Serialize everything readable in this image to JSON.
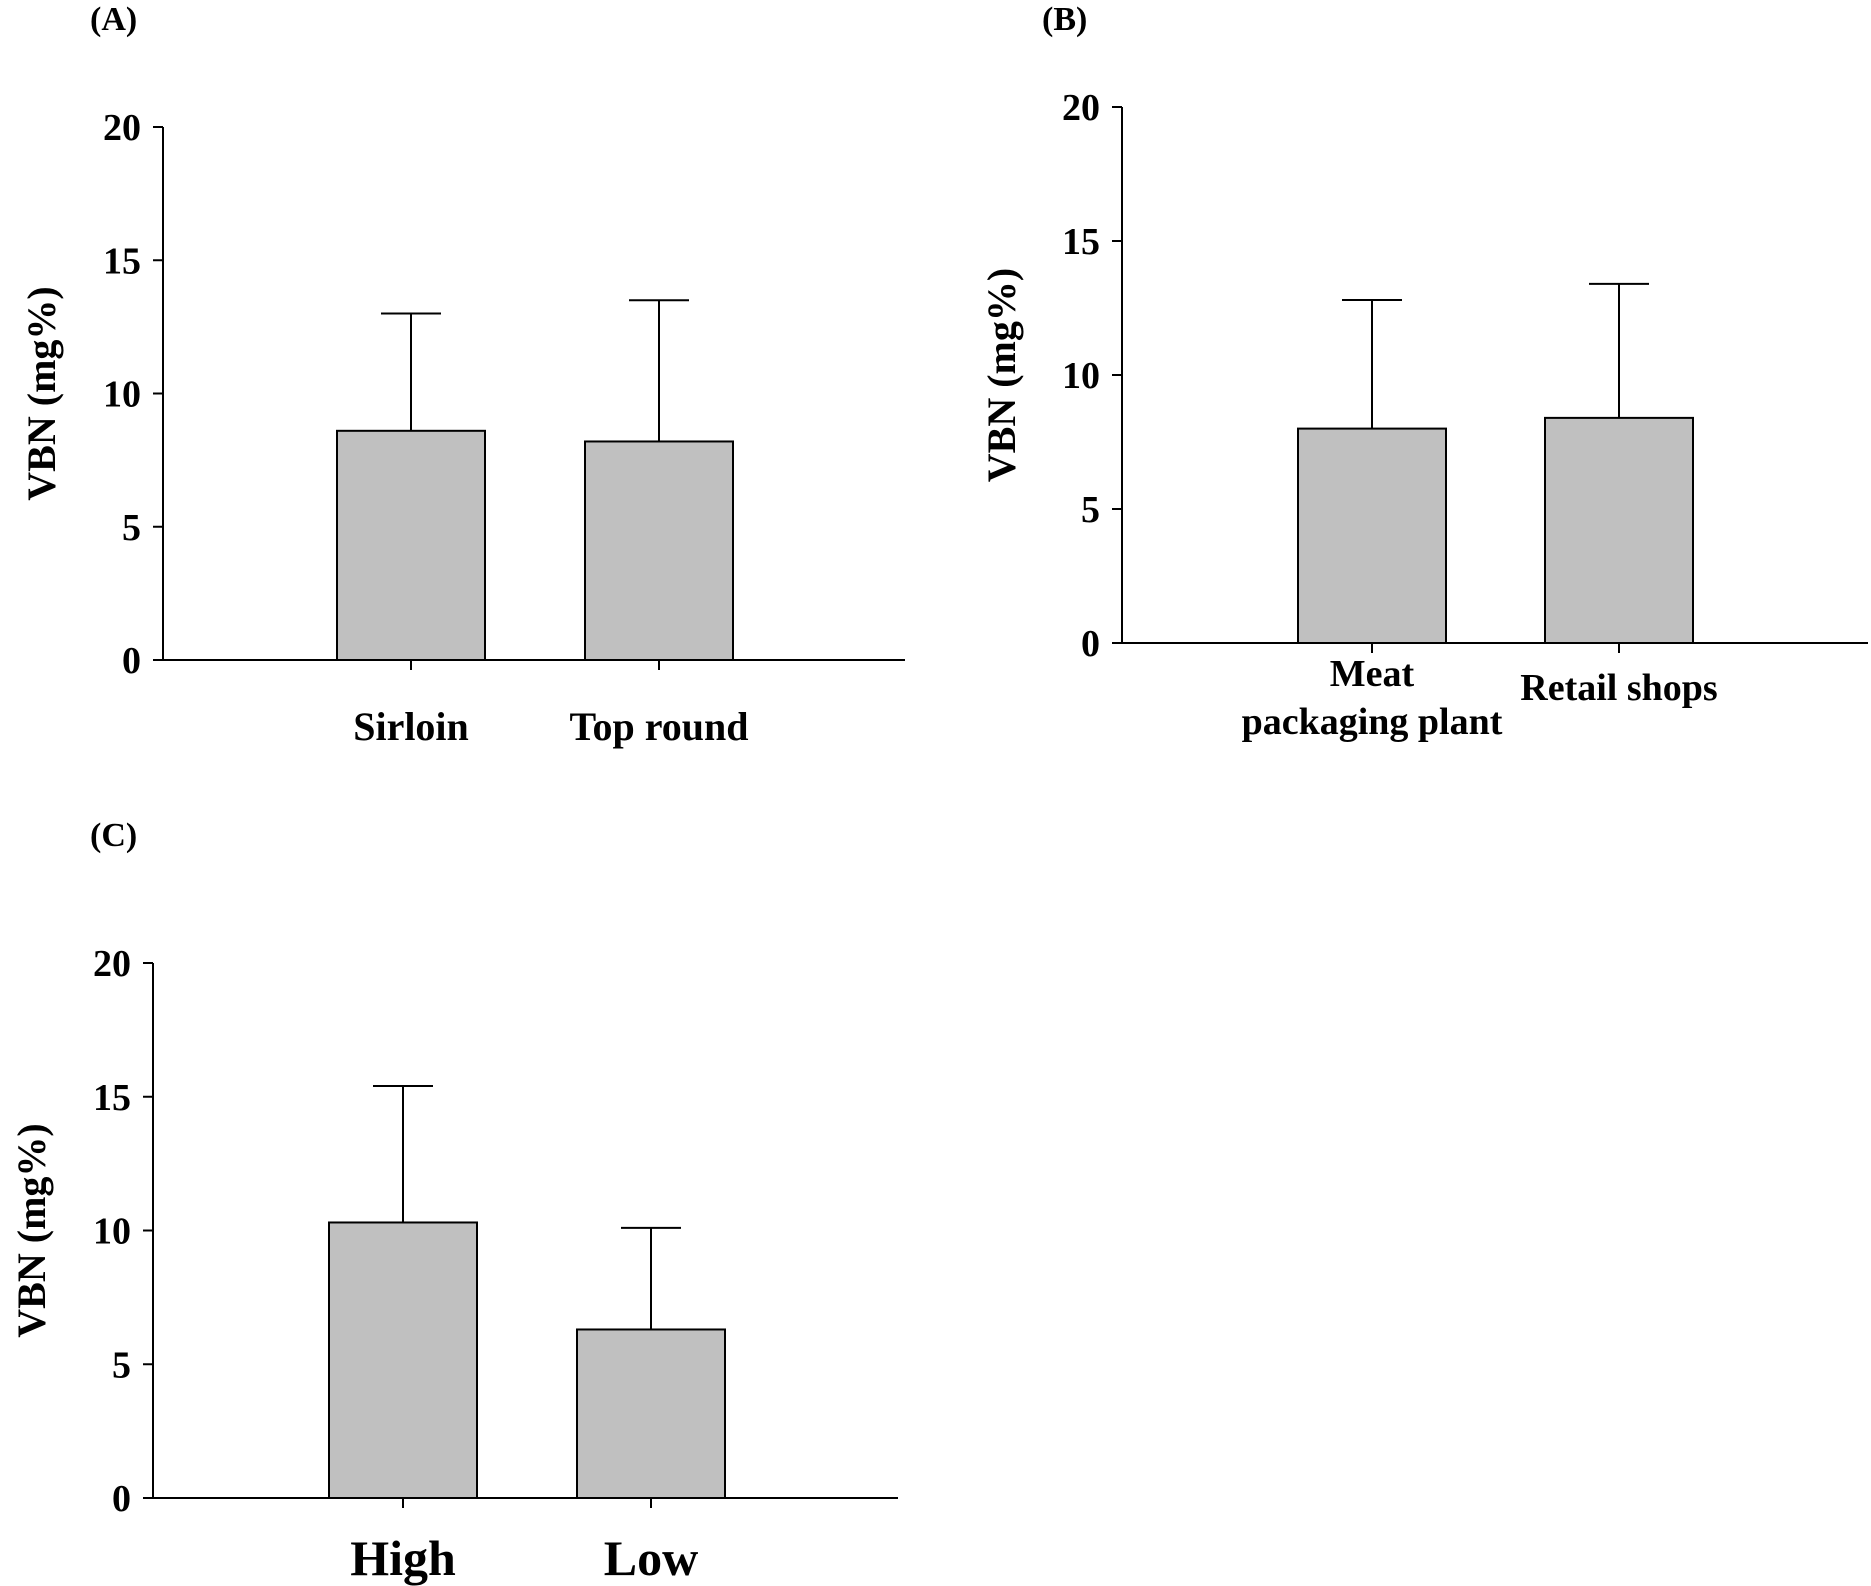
{
  "chart_data": [
    {
      "panel": "(A)",
      "type": "bar",
      "categories": [
        "Sirloin",
        "Top round"
      ],
      "values": [
        8.6,
        8.2
      ],
      "errors": [
        4.4,
        5.3
      ],
      "ylabel": "VBN (mg%)",
      "ylim": [
        0,
        20
      ],
      "yticks": [
        0,
        5,
        10,
        15,
        20
      ],
      "bar_color": "#c0c0c0"
    },
    {
      "panel": "(B)",
      "type": "bar",
      "categories": [
        "Meat packaging plant",
        "Retail shops"
      ],
      "values": [
        8.0,
        8.4
      ],
      "errors": [
        4.8,
        5.0
      ],
      "ylabel": "VBN (mg%)",
      "ylim": [
        0,
        20
      ],
      "yticks": [
        0,
        5,
        10,
        15,
        20
      ],
      "bar_color": "#c0c0c0"
    },
    {
      "panel": "(C)",
      "type": "bar",
      "categories": [
        "High",
        "Low"
      ],
      "values": [
        10.3,
        6.3
      ],
      "errors": [
        5.1,
        3.8
      ],
      "ylabel": "VBN (mg%)",
      "ylim": [
        0,
        20
      ],
      "yticks": [
        0,
        5,
        10,
        15,
        20
      ],
      "bar_color": "#c0c0c0"
    }
  ]
}
